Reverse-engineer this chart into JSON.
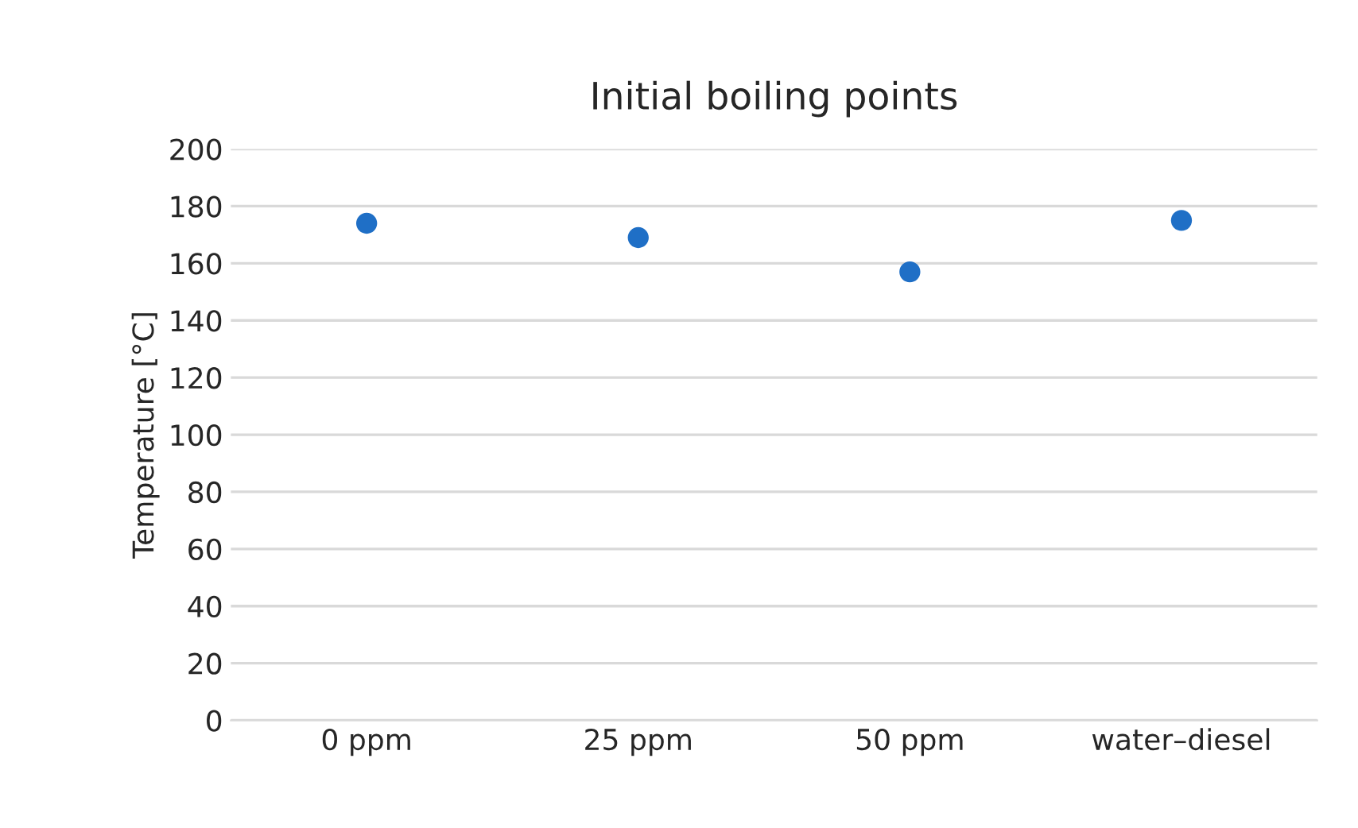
{
  "chart_data": {
    "type": "scatter",
    "title": "Initial boiling points",
    "ylabel": "Temperature [°C]",
    "categories": [
      "0 ppm",
      "25 ppm",
      "50 ppm",
      "water–diesel"
    ],
    "series": [
      {
        "color": "#1f6fc6",
        "values": [
          174,
          169,
          157,
          175
        ]
      }
    ],
    "ylim": [
      0,
      200
    ],
    "yticks": [
      0,
      20,
      40,
      60,
      80,
      100,
      120,
      140,
      160,
      180,
      200
    ],
    "grid": "y",
    "marker": "circle",
    "legend": false
  }
}
